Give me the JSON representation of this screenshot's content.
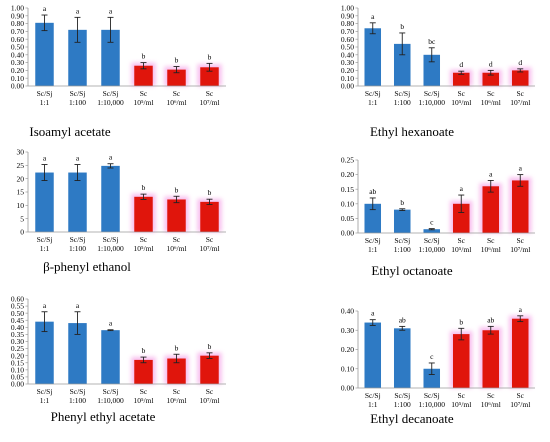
{
  "colors": {
    "blue": "#2e7ac4",
    "red": "#e0150c",
    "glow": "#f7b8ec",
    "axis": "#9a9a9a"
  },
  "chart_data": [
    {
      "type": "bar",
      "title": "Isoamyl acetate",
      "categories": [
        [
          "Sc/Sj",
          "1:1"
        ],
        [
          "Sc/Sj",
          "1:100"
        ],
        [
          "Sc/Sj",
          "1:10,000"
        ],
        [
          "Sc",
          "10⁵/ml"
        ],
        [
          "Sc",
          "10⁶/ml"
        ],
        [
          "Sc",
          "10⁷/ml"
        ]
      ],
      "values": [
        0.81,
        0.72,
        0.72,
        0.26,
        0.21,
        0.24
      ],
      "errors": [
        0.1,
        0.16,
        0.16,
        0.04,
        0.04,
        0.05
      ],
      "letters": [
        "a",
        "a",
        "a",
        "b",
        "b",
        "b"
      ],
      "colors": [
        "blue",
        "blue",
        "blue",
        "red",
        "red",
        "red"
      ],
      "yticks": [
        "0.00",
        "0.10",
        "0.20",
        "0.30",
        "0.40",
        "0.50",
        "0.60",
        "0.70",
        "0.80",
        "0.90",
        "1.00"
      ],
      "ylim": [
        0,
        1.0
      ]
    },
    {
      "type": "bar",
      "title": "Ethyl  hexanoate",
      "categories": [
        [
          "Sc/Sj",
          "1:1"
        ],
        [
          "Sc/Sj",
          "1:100"
        ],
        [
          "Sc/Sj",
          "1:10,000"
        ],
        [
          "Sc",
          "10⁵/ml"
        ],
        [
          "Sc",
          "10⁶/ml"
        ],
        [
          "Sc",
          "10⁷/ml"
        ]
      ],
      "values": [
        0.74,
        0.54,
        0.4,
        0.17,
        0.17,
        0.2
      ],
      "errors": [
        0.07,
        0.14,
        0.09,
        0.02,
        0.03,
        0.02
      ],
      "letters": [
        "a",
        "b",
        "bc",
        "d",
        "d",
        "d"
      ],
      "colors": [
        "blue",
        "blue",
        "blue",
        "red",
        "red",
        "red"
      ],
      "yticks": [
        "0.00",
        "0.10",
        "0.20",
        "0.30",
        "0.40",
        "0.50",
        "0.60",
        "0.70",
        "0.80",
        "0.90",
        "1.00"
      ],
      "ylim": [
        0,
        1.0
      ]
    },
    {
      "type": "bar",
      "title": "β-phenyl  ethanol",
      "categories": [
        [
          "Sc/Sj",
          "1:1"
        ],
        [
          "Sc/Sj",
          "1:100"
        ],
        [
          "Sc/Sj",
          "1:10,000"
        ],
        [
          "Sc",
          "10⁵/ml"
        ],
        [
          "Sc",
          "10⁶/ml"
        ],
        [
          "Sc",
          "10⁷/ml"
        ]
      ],
      "values": [
        22.3,
        22.3,
        24.8,
        13.2,
        12.2,
        11.3
      ],
      "errors": [
        3.0,
        3.0,
        0.8,
        1.0,
        1.2,
        1.0
      ],
      "letters": [
        "a",
        "a",
        "a",
        "b",
        "b",
        "b"
      ],
      "colors": [
        "blue",
        "blue",
        "blue",
        "red",
        "red",
        "red"
      ],
      "yticks": [
        "0",
        "5",
        "10",
        "15",
        "20",
        "25",
        "30"
      ],
      "ylim": [
        0,
        30
      ]
    },
    {
      "type": "bar",
      "title": "Ethyl  octanoate",
      "categories": [
        [
          "Sc/Sj",
          "1:1"
        ],
        [
          "Sc/Sj",
          "1:100"
        ],
        [
          "Sc/Sj",
          "1:10,000"
        ],
        [
          "Sc",
          "10⁵/ml"
        ],
        [
          "Sc",
          "10⁶/ml"
        ],
        [
          "Sc",
          "10⁷/ml"
        ]
      ],
      "values": [
        0.1,
        0.08,
        0.013,
        0.1,
        0.16,
        0.18
      ],
      "errors": [
        0.02,
        0.003,
        0.002,
        0.03,
        0.02,
        0.02
      ],
      "letters": [
        "ab",
        "b",
        "c",
        "a",
        "a",
        "a"
      ],
      "colors": [
        "blue",
        "blue",
        "blue",
        "red",
        "red",
        "red"
      ],
      "yticks": [
        "0.00",
        "0.05",
        "0.10",
        "0.15",
        "0.20",
        "0.25"
      ],
      "ylim": [
        0,
        0.25
      ]
    },
    {
      "type": "bar",
      "title": "Phenyl ethyl  acetate",
      "categories": [
        [
          "Sc/Sj",
          "1:1"
        ],
        [
          "Sc/Sj",
          "1:100"
        ],
        [
          "Sc/Sj",
          "1:10,000"
        ],
        [
          "Sc",
          "10⁵/ml"
        ],
        [
          "Sc",
          "10⁶/ml"
        ],
        [
          "Sc",
          "10⁷/ml"
        ]
      ],
      "values": [
        0.44,
        0.43,
        0.38,
        0.17,
        0.18,
        0.2
      ],
      "errors": [
        0.07,
        0.08,
        0.003,
        0.02,
        0.03,
        0.02
      ],
      "letters": [
        "a",
        "a",
        "a",
        "b",
        "b",
        "b"
      ],
      "colors": [
        "blue",
        "blue",
        "blue",
        "red",
        "red",
        "red"
      ],
      "yticks": [
        "0.00",
        "0.05",
        "0.10",
        "0.15",
        "0.20",
        "0.25",
        "0.30",
        "0.35",
        "0.40",
        "0.45",
        "0.50",
        "0.55",
        "0.60"
      ],
      "ylim": [
        0,
        0.6
      ]
    },
    {
      "type": "bar",
      "title": "Ethyl  decanoate",
      "categories": [
        [
          "Sc/Sj",
          "1:1"
        ],
        [
          "Sc/Sj",
          "1:100"
        ],
        [
          "Sc/Sj",
          "1:10,000"
        ],
        [
          "Sc",
          "10⁵/ml"
        ],
        [
          "Sc",
          "10⁶/ml"
        ],
        [
          "Sc",
          "10⁷/ml"
        ]
      ],
      "values": [
        0.34,
        0.31,
        0.1,
        0.28,
        0.3,
        0.36
      ],
      "errors": [
        0.015,
        0.01,
        0.03,
        0.03,
        0.02,
        0.015
      ],
      "letters": [
        "a",
        "ab",
        "c",
        "b",
        "ab",
        "a"
      ],
      "colors": [
        "blue",
        "blue",
        "blue",
        "red",
        "red",
        "red"
      ],
      "yticks": [
        "0.00",
        "0.10",
        "0.20",
        "0.30",
        "0.40"
      ],
      "ylim": [
        0,
        0.4
      ]
    }
  ]
}
